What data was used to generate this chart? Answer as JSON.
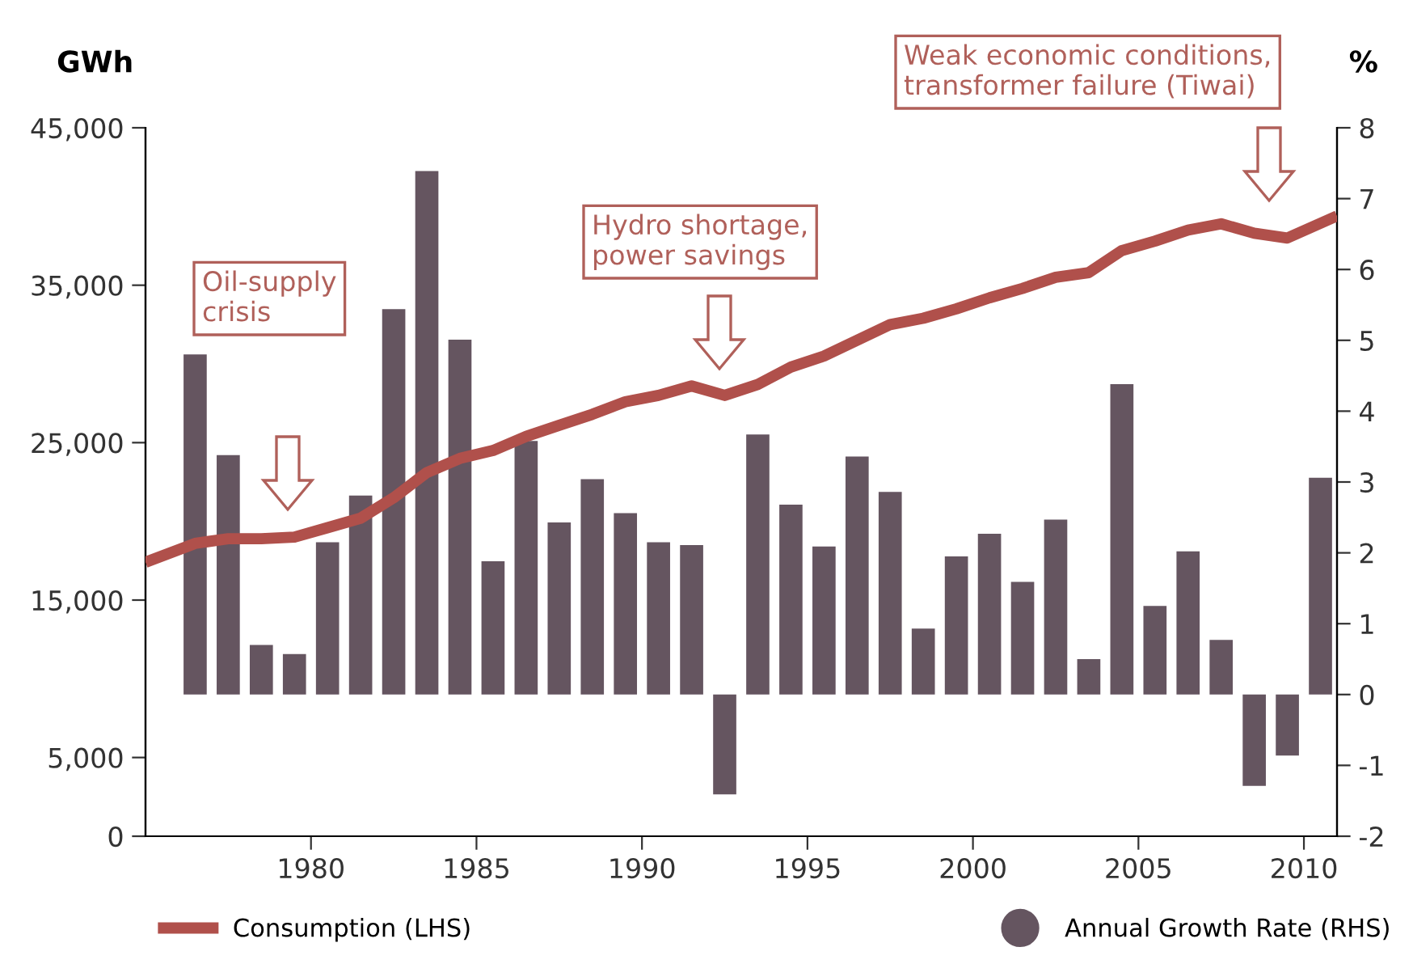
{
  "chart_data": {
    "type": "bar",
    "ylabel": "GWh",
    "y2label": "%",
    "x": [
      1976.5,
      1977.5,
      1978.5,
      1979.5,
      1980.5,
      1981.5,
      1982.5,
      1983.5,
      1984.5,
      1985.5,
      1986.5,
      1987.5,
      1988.5,
      1989.5,
      1990.5,
      1991.5,
      1992.5,
      1993.5,
      1994.5,
      1995.5,
      1996.5,
      1997.5,
      1998.5,
      1999.5,
      2000.5,
      2001.5,
      2002.5,
      2003.5,
      2004.5,
      2005.5,
      2006.5,
      2007.5,
      2008.5,
      2009.5,
      2010.5
    ],
    "series": [
      {
        "name": "Consumption (LHS)",
        "type": "line",
        "color": "#b0504b",
        "x": [
          1975,
          1976.5,
          1977.5,
          1978.5,
          1979.5,
          1980.5,
          1981.5,
          1982.5,
          1983.5,
          1984.5,
          1985.5,
          1986.5,
          1987.5,
          1988.5,
          1989.5,
          1990.5,
          1991.5,
          1992.5,
          1993.5,
          1994.5,
          1995.5,
          1996.5,
          1997.5,
          1998.5,
          1999.5,
          2000.5,
          2001.5,
          2002.5,
          2003.5,
          2004.5,
          2005.5,
          2006.5,
          2007.5,
          2008.5,
          2009.5,
          2011
        ],
        "values": [
          17400,
          18600,
          18900,
          18900,
          19000,
          19600,
          20200,
          21500,
          23100,
          24000,
          24500,
          25400,
          26100,
          26800,
          27600,
          28000,
          28600,
          28000,
          28700,
          29800,
          30500,
          31500,
          32500,
          32900,
          33500,
          34200,
          34800,
          35500,
          35800,
          37200,
          37800,
          38500,
          38900,
          38300,
          38000,
          39400
        ]
      },
      {
        "name": "Annual Growth Rate (RHS)",
        "axis": "y2",
        "color": "#655560",
        "values": [
          4.8,
          3.38,
          0.7,
          0.57,
          2.15,
          2.81,
          5.44,
          7.39,
          5.01,
          1.88,
          3.58,
          2.43,
          3.04,
          2.56,
          2.15,
          2.11,
          -1.41,
          3.67,
          2.68,
          2.09,
          3.36,
          2.86,
          0.93,
          1.95,
          2.27,
          1.59,
          2.47,
          0.5,
          4.38,
          1.25,
          2.02,
          0.77,
          -1.29,
          -0.86,
          3.06
        ]
      }
    ],
    "xlim": [
      1975,
      2011
    ],
    "xticks": [
      1980,
      1985,
      1990,
      1995,
      2000,
      2005,
      2010
    ],
    "ylim": [
      0,
      45000
    ],
    "yticks": [
      0,
      {
        "value": 5000,
        "label": "5,000"
      },
      {
        "value": 15000,
        "label": "15,000"
      },
      {
        "value": 25000,
        "label": "25,000"
      },
      {
        "value": 35000,
        "label": "35,000"
      },
      {
        "value": 45000,
        "label": "45,000"
      }
    ],
    "y2lim": [
      -2,
      8
    ],
    "y2ticks": [
      -2,
      -1,
      0,
      1,
      2,
      3,
      4,
      5,
      6,
      7,
      8
    ],
    "grid": false,
    "legend": "bottom",
    "annotations": [
      "Oil-supply\ncrisis",
      "Hydro shortage,\npower savings",
      "Weak economic conditions,\ntransformer failure (Tiwai)"
    ]
  }
}
